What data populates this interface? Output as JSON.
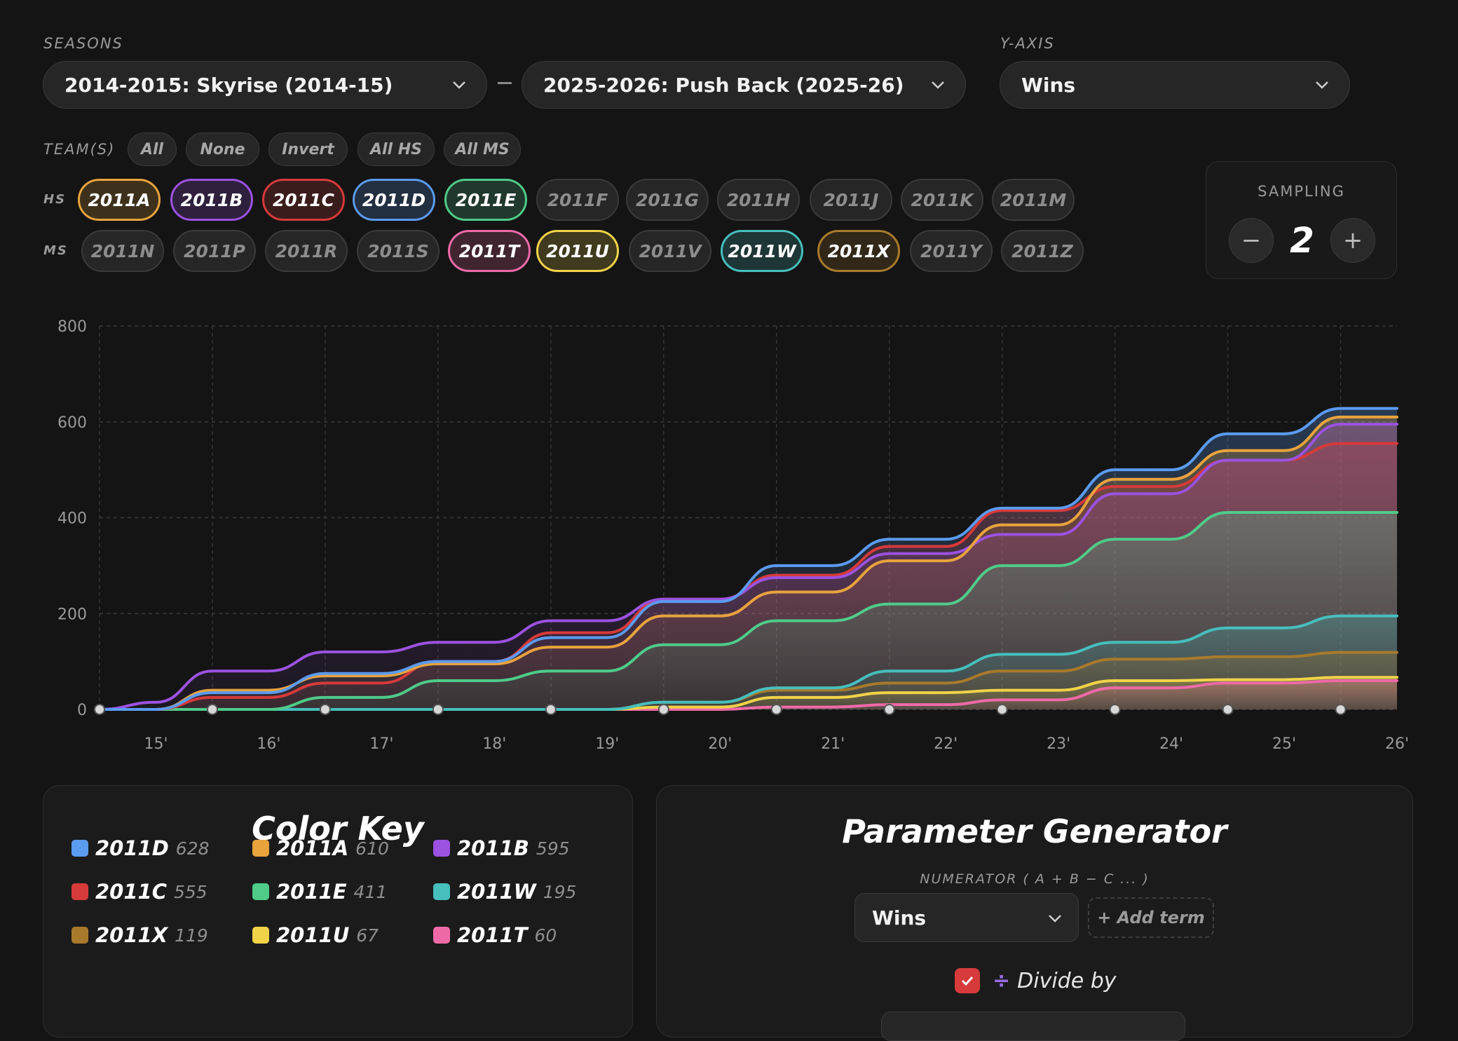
{
  "filters": {
    "seasons_label": "SEASONS",
    "season_start": "2014-2015: Skyrise (2014-15)",
    "season_end": "2025-2026: Push Back (2025-26)",
    "yaxis_label": "Y-AXIS",
    "yaxis_value": "Wins",
    "teams_label": "TEAM(S)",
    "team_buttons": [
      "All",
      "None",
      "Invert",
      "All HS",
      "All MS"
    ],
    "hs_label": "HS",
    "ms_label": "MS",
    "hs_teams": [
      {
        "name": "2011A",
        "on": true,
        "color": "#e8a33d"
      },
      {
        "name": "2011B",
        "on": true,
        "color": "#9b52e0"
      },
      {
        "name": "2011C",
        "on": true,
        "color": "#d63a3a"
      },
      {
        "name": "2011D",
        "on": true,
        "color": "#5b9bf0"
      },
      {
        "name": "2011E",
        "on": true,
        "color": "#4fcb8a"
      },
      {
        "name": "2011F",
        "on": false,
        "color": ""
      },
      {
        "name": "2011G",
        "on": false,
        "color": ""
      },
      {
        "name": "2011H",
        "on": false,
        "color": ""
      },
      {
        "name": "2011J",
        "on": false,
        "color": ""
      },
      {
        "name": "2011K",
        "on": false,
        "color": ""
      },
      {
        "name": "2011M",
        "on": false,
        "color": ""
      }
    ],
    "ms_teams": [
      {
        "name": "2011N",
        "on": false,
        "color": ""
      },
      {
        "name": "2011P",
        "on": false,
        "color": ""
      },
      {
        "name": "2011R",
        "on": false,
        "color": ""
      },
      {
        "name": "2011S",
        "on": false,
        "color": ""
      },
      {
        "name": "2011T",
        "on": true,
        "color": "#ee6aa7"
      },
      {
        "name": "2011U",
        "on": true,
        "color": "#f0d348"
      },
      {
        "name": "2011V",
        "on": false,
        "color": ""
      },
      {
        "name": "2011W",
        "on": true,
        "color": "#46bfbd"
      },
      {
        "name": "2011X",
        "on": true,
        "color": "#a87a2c"
      },
      {
        "name": "2011Y",
        "on": false,
        "color": ""
      },
      {
        "name": "2011Z",
        "on": false,
        "color": ""
      }
    ]
  },
  "sampling": {
    "label": "SAMPLING",
    "value": "2",
    "minus": "−",
    "plus": "+"
  },
  "chart_data": {
    "type": "line",
    "x": [
      "14-15",
      "15",
      "15-16",
      "16",
      "16-17",
      "17",
      "17-18",
      "18",
      "18-19",
      "19",
      "19-20",
      "20",
      "20-21",
      "21",
      "21-22",
      "22",
      "22-23",
      "23",
      "23-24",
      "24",
      "24-25",
      "25",
      "25-26",
      "26"
    ],
    "x_tick_labels": [
      "15'",
      "16'",
      "17'",
      "18'",
      "19'",
      "20'",
      "21'",
      "22'",
      "23'",
      "24'",
      "25'",
      "26'"
    ],
    "ylim": [
      0,
      800
    ],
    "y_ticks": [
      0,
      200,
      400,
      600,
      800
    ],
    "grid": true,
    "area_fill": true,
    "series": [
      {
        "name": "2011D",
        "color": "#5b9bf0",
        "values": [
          0,
          0,
          35,
          35,
          75,
          75,
          100,
          100,
          150,
          150,
          225,
          225,
          300,
          300,
          355,
          355,
          420,
          420,
          500,
          500,
          575,
          575,
          628,
          628
        ]
      },
      {
        "name": "2011A",
        "color": "#e8a33d",
        "values": [
          0,
          0,
          40,
          40,
          70,
          70,
          95,
          95,
          130,
          130,
          195,
          195,
          245,
          245,
          310,
          310,
          385,
          385,
          480,
          480,
          540,
          540,
          610,
          610
        ]
      },
      {
        "name": "2011B",
        "color": "#9b52e0",
        "values": [
          0,
          15,
          80,
          80,
          120,
          120,
          140,
          140,
          185,
          185,
          230,
          230,
          275,
          275,
          325,
          325,
          365,
          365,
          450,
          450,
          520,
          520,
          595,
          595
        ]
      },
      {
        "name": "2011C",
        "color": "#d63a3a",
        "values": [
          0,
          0,
          25,
          25,
          55,
          55,
          100,
          100,
          160,
          160,
          230,
          230,
          280,
          280,
          340,
          340,
          415,
          415,
          465,
          465,
          520,
          520,
          555,
          555
        ]
      },
      {
        "name": "2011E",
        "color": "#4fcb8a",
        "values": [
          0,
          0,
          0,
          0,
          25,
          25,
          60,
          60,
          80,
          80,
          135,
          135,
          185,
          185,
          220,
          220,
          300,
          300,
          355,
          355,
          411,
          411,
          411,
          411
        ]
      },
      {
        "name": "2011W",
        "color": "#46bfbd",
        "values": [
          0,
          0,
          0,
          0,
          0,
          0,
          0,
          0,
          0,
          0,
          15,
          15,
          45,
          45,
          80,
          80,
          115,
          115,
          140,
          140,
          170,
          170,
          195,
          195
        ]
      },
      {
        "name": "2011X",
        "color": "#a87a2c",
        "values": [
          0,
          0,
          0,
          0,
          0,
          0,
          0,
          0,
          0,
          0,
          15,
          15,
          40,
          40,
          55,
          55,
          80,
          80,
          105,
          105,
          110,
          110,
          119,
          119
        ]
      },
      {
        "name": "2011U",
        "color": "#f0d348",
        "values": [
          0,
          0,
          0,
          0,
          0,
          0,
          0,
          0,
          0,
          0,
          5,
          5,
          25,
          25,
          35,
          35,
          40,
          40,
          60,
          60,
          62,
          62,
          67,
          67
        ]
      },
      {
        "name": "2011T",
        "color": "#ee6aa7",
        "values": [
          0,
          0,
          0,
          0,
          0,
          0,
          0,
          0,
          0,
          0,
          0,
          0,
          5,
          5,
          10,
          10,
          20,
          20,
          45,
          45,
          55,
          55,
          60,
          60
        ]
      }
    ]
  },
  "color_key": {
    "title": "Color Key",
    "items": [
      {
        "name": "2011D",
        "value": "628",
        "color": "#5b9bf0"
      },
      {
        "name": "2011A",
        "value": "610",
        "color": "#e8a33d"
      },
      {
        "name": "2011B",
        "value": "595",
        "color": "#9b52e0"
      },
      {
        "name": "2011C",
        "value": "555",
        "color": "#d63a3a"
      },
      {
        "name": "2011E",
        "value": "411",
        "color": "#4fcb8a"
      },
      {
        "name": "2011W",
        "value": "195",
        "color": "#46bfbd"
      },
      {
        "name": "2011X",
        "value": "119",
        "color": "#a87a2c"
      },
      {
        "name": "2011U",
        "value": "67",
        "color": "#f0d348"
      },
      {
        "name": "2011T",
        "value": "60",
        "color": "#ee6aa7"
      }
    ]
  },
  "param_gen": {
    "title": "Parameter Generator",
    "numerator_label": "NUMERATOR ( A + B − C ... )",
    "numerator_value": "Wins",
    "add_term": "+ Add term",
    "divide_icon": "÷",
    "divide_label": "Divide by",
    "divide_checked": true
  }
}
